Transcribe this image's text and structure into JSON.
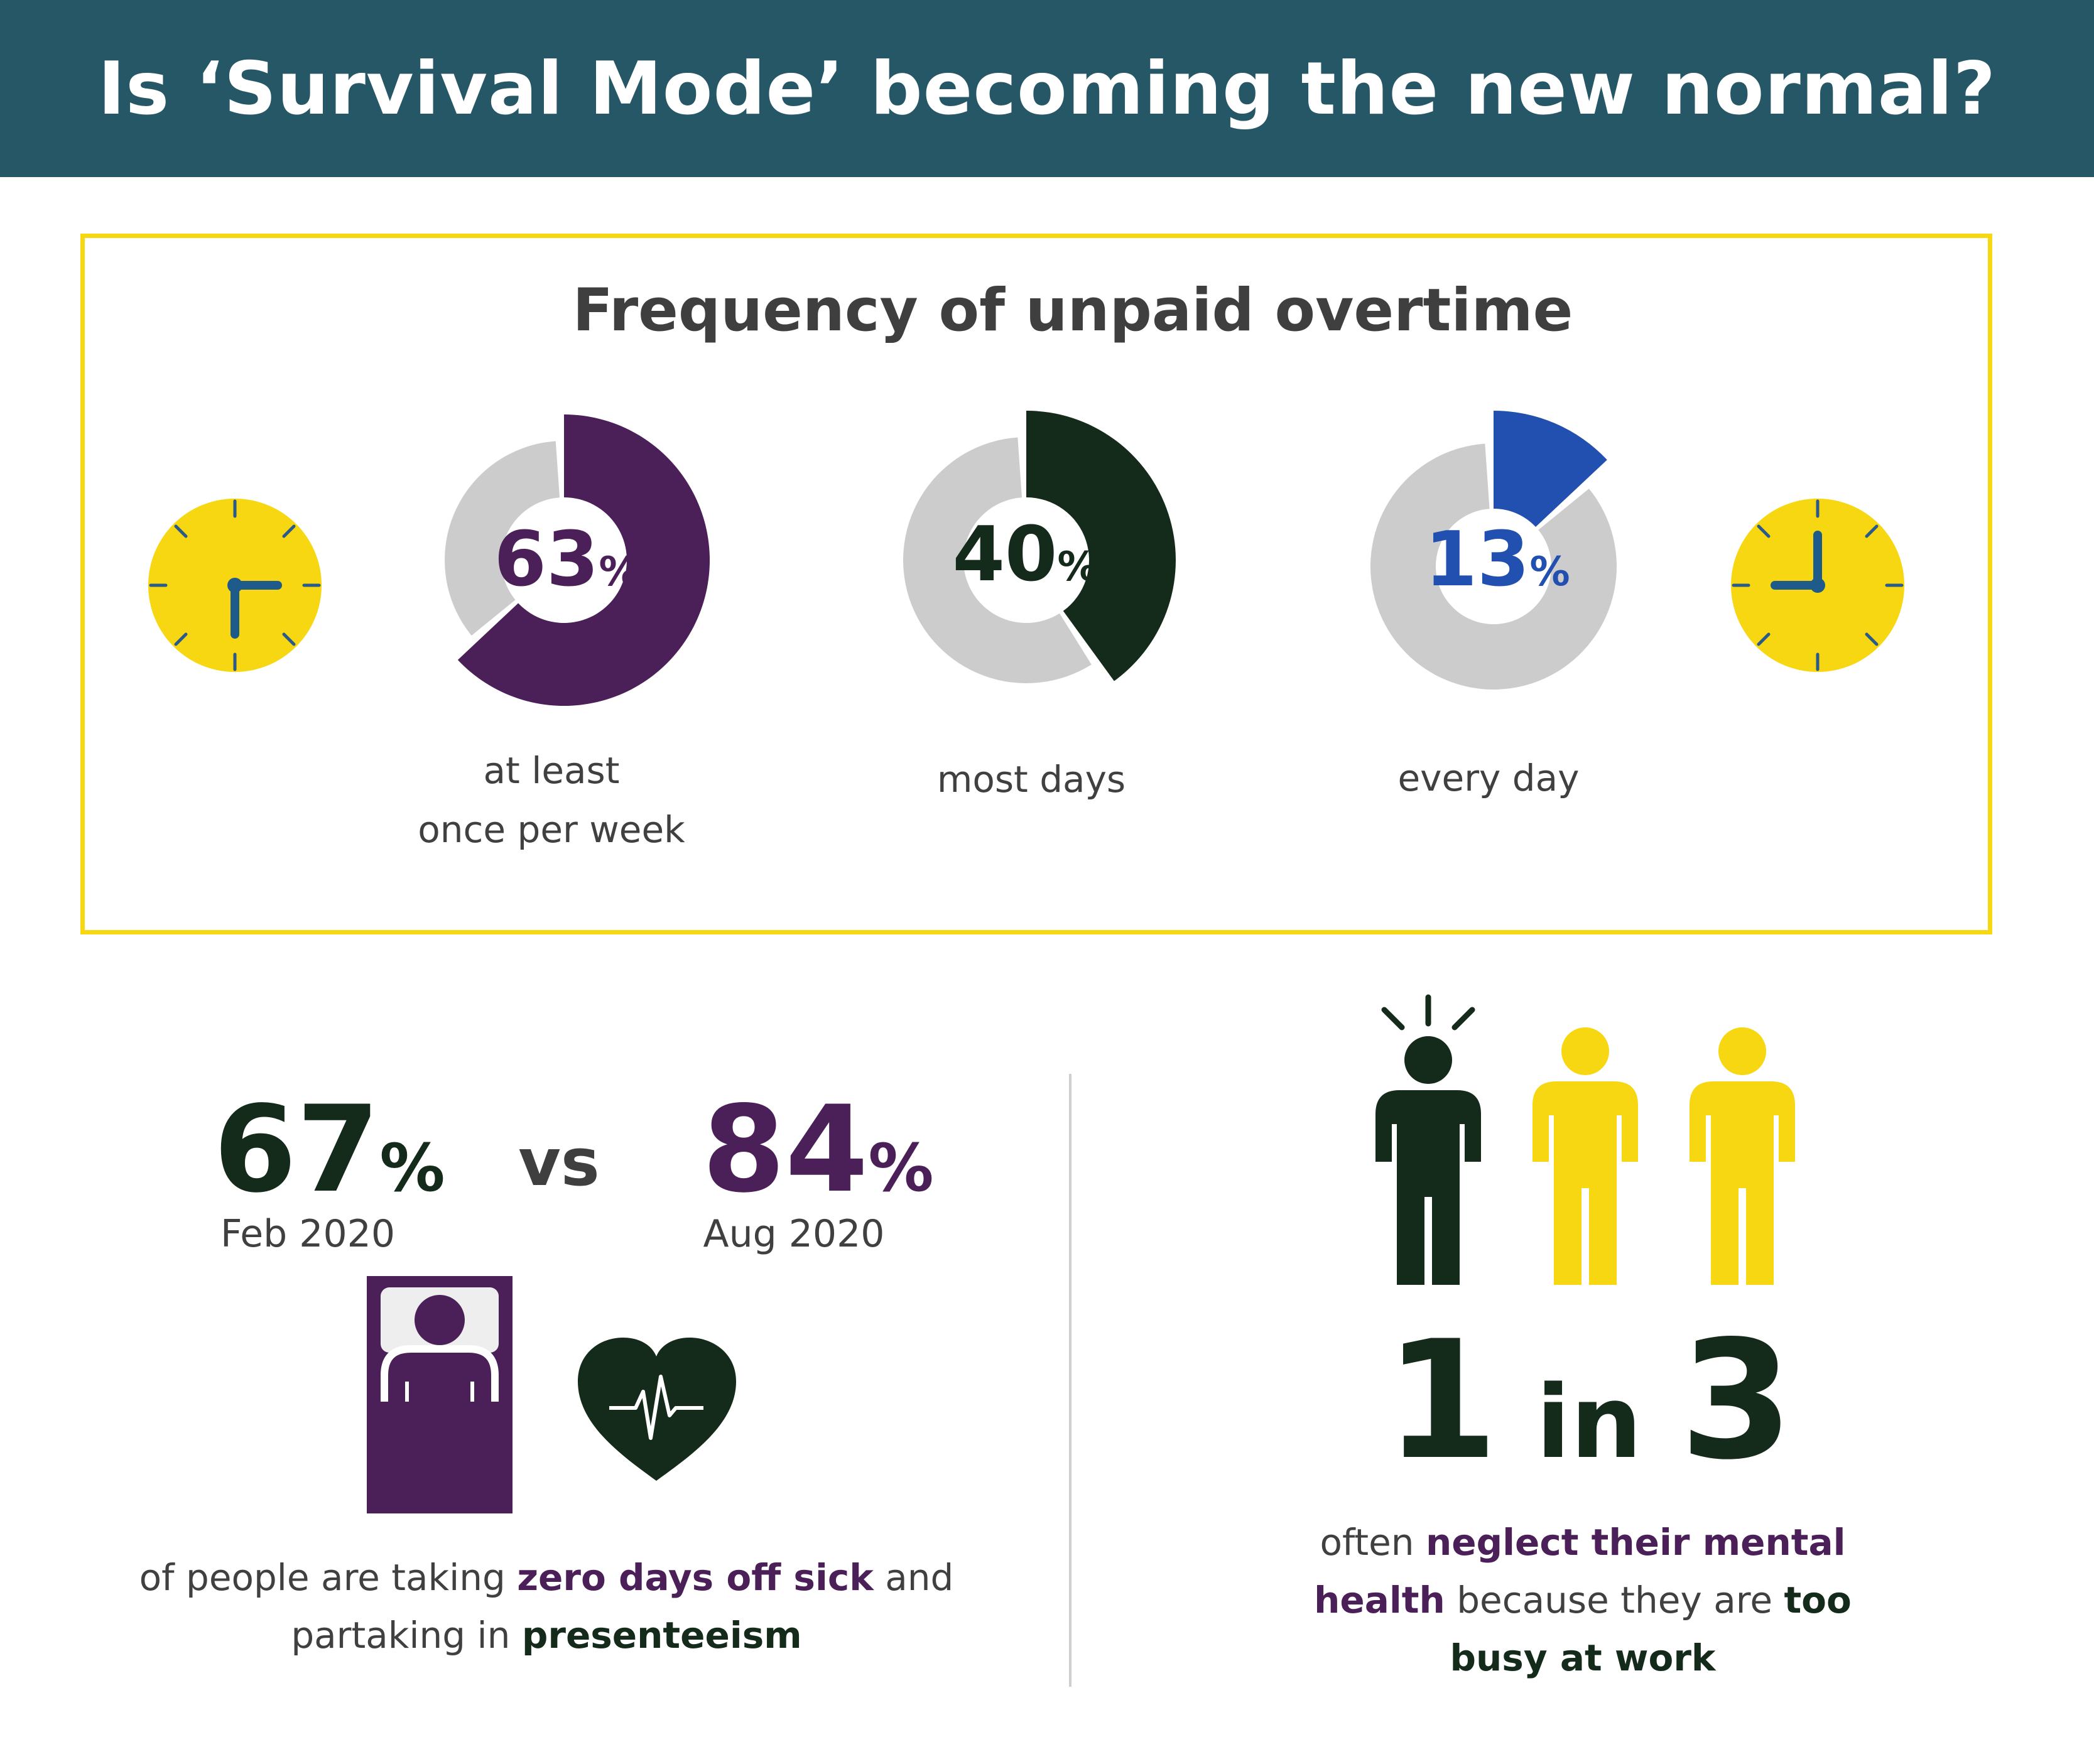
{
  "header": {
    "title": "Is ‘Survival Mode’ becoming the new normal?"
  },
  "colors": {
    "header_bg": "#255766",
    "accent_yellow": "#f7d711",
    "purple": "#4b1f57",
    "dark_green": "#142a1a",
    "blue": "#2250b0",
    "gray": "#cccccc"
  },
  "frequency": {
    "title": "Frequency of unpaid overtime",
    "items": [
      {
        "number": "63",
        "suffix": "%",
        "value": 63,
        "label_line1": "at least",
        "label_line2": "once per week",
        "color": "#4b1f57"
      },
      {
        "number": "40",
        "suffix": "%",
        "value": 40,
        "label_line1": "most days",
        "label_line2": "",
        "color": "#142a1a"
      },
      {
        "number": "13",
        "suffix": "%",
        "value": 13,
        "label_line1": "every day",
        "label_line2": "",
        "color": "#2250b0"
      }
    ],
    "icons": [
      "clock-icon",
      "clock-icon"
    ]
  },
  "sick": {
    "left_number": "67",
    "left_suffix": "%",
    "left_date": "Feb 2020",
    "vs": "vs",
    "right_number": "84",
    "right_suffix": "%",
    "right_date": "Aug 2020",
    "caption_pre": "of people are taking ",
    "caption_bold1": "zero days off sick",
    "caption_mid": " and",
    "caption_line2_pre": "partaking in ",
    "caption_bold2": "presenteeism",
    "icons": [
      "sick-in-bed-icon",
      "heartbeat-icon"
    ]
  },
  "mental": {
    "num1": "1",
    "word": "in",
    "num2": "3",
    "line1_pre": "often ",
    "line1_bold": "neglect their mental",
    "line2_bold": "health",
    "line2_mid": " because they are ",
    "line2_bold2": "too",
    "line3_bold": "busy at work",
    "icons": [
      "stressed-person-icon",
      "person-icon",
      "person-icon"
    ]
  }
}
